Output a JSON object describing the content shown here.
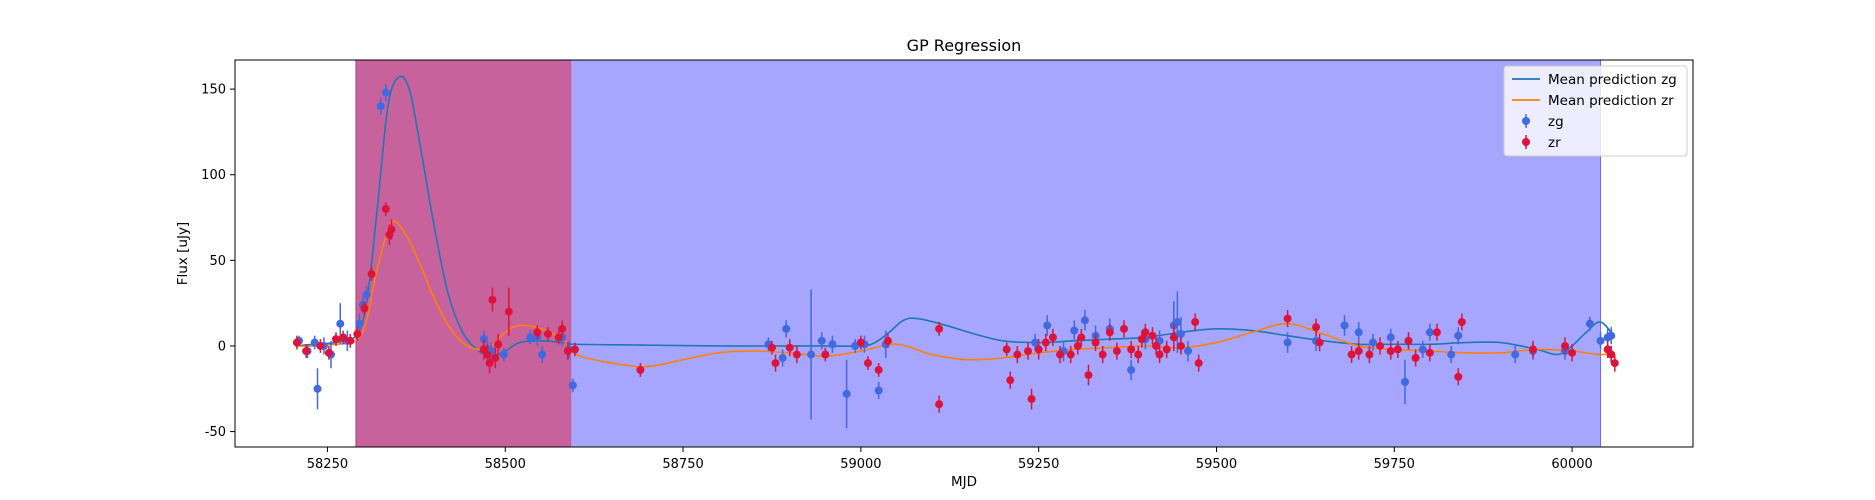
{
  "chart_data": {
    "type": "scatter",
    "title": "GP Regression",
    "xlabel": "MJD",
    "ylabel": "Flux [uJy]",
    "xlim": [
      58120,
      60170
    ],
    "ylim": [
      -59,
      167
    ],
    "xticks": [
      58250,
      58500,
      58750,
      59000,
      59250,
      59500,
      59750,
      60000
    ],
    "yticks": [
      -50,
      0,
      50,
      100,
      150
    ],
    "legend": {
      "position": "top-right",
      "entries": [
        {
          "label": "Mean prediction zg",
          "kind": "line",
          "color": "#1f77b4"
        },
        {
          "label": "Mean prediction zr",
          "kind": "line",
          "color": "#ff7f0e"
        },
        {
          "label": "zg",
          "kind": "errorbar",
          "color": "#4169e1"
        },
        {
          "label": "zr",
          "kind": "errorbar",
          "color": "#dc143c"
        }
      ]
    },
    "shaded_regions": [
      {
        "x0": 58290,
        "x1": 60040,
        "color": "#0000ff",
        "alpha": 0.35
      },
      {
        "x0": 58290,
        "x1": 58592,
        "color": "#e0365a",
        "alpha": 0.6
      }
    ],
    "series": [
      {
        "name": "Mean prediction zg",
        "kind": "line",
        "color": "#1f77b4",
        "x": [
          58205,
          58230,
          58260,
          58290,
          58305,
          58320,
          58335,
          58350,
          58365,
          58380,
          58400,
          58420,
          58440,
          58460,
          58480,
          58500,
          58520,
          58550,
          58580,
          58600,
          58700,
          58800,
          58900,
          58950,
          59000,
          59020,
          59040,
          59060,
          59080,
          59120,
          59160,
          59200,
          59250,
          59300,
          59350,
          59400,
          59450,
          59500,
          59550,
          59600,
          59650,
          59700,
          59750,
          59800,
          59850,
          59900,
          59950,
          59980,
          60000,
          60020,
          60040,
          60060
        ],
        "y": [
          0,
          1,
          2,
          6,
          25,
          80,
          140,
          157,
          150,
          118,
          70,
          30,
          8,
          -2,
          -6,
          -3,
          2,
          3,
          2,
          1,
          0.5,
          0,
          0,
          0,
          0,
          2,
          8,
          15,
          16,
          12,
          7,
          3,
          2,
          3,
          4,
          5,
          8,
          10,
          9,
          6,
          3,
          1,
          1,
          1,
          2,
          2,
          -2,
          -5,
          0,
          8,
          14,
          5
        ]
      },
      {
        "name": "Mean prediction zr",
        "kind": "line",
        "color": "#ff7f0e",
        "x": [
          58205,
          58230,
          58260,
          58290,
          58305,
          58320,
          58340,
          58360,
          58380,
          58400,
          58420,
          58440,
          58460,
          58480,
          58500,
          58520,
          58550,
          58580,
          58600,
          58650,
          58700,
          58750,
          58800,
          58850,
          58900,
          58950,
          59000,
          59050,
          59100,
          59150,
          59200,
          59250,
          59300,
          59350,
          59400,
          59450,
          59500,
          59550,
          59600,
          59650,
          59700,
          59750,
          59800,
          59850,
          59900,
          59950,
          60000,
          60040,
          60060
        ],
        "y": [
          0,
          0,
          1,
          3,
          15,
          45,
          72,
          65,
          48,
          28,
          12,
          2,
          -2,
          0,
          8,
          12,
          10,
          4,
          -5,
          -10,
          -12,
          -8,
          -4,
          -3,
          -4,
          -6,
          -3,
          1,
          -5,
          -8,
          -7,
          -4,
          -2,
          -1,
          0,
          -1,
          2,
          8,
          13,
          7,
          0,
          -2,
          -3,
          -4,
          -4,
          -2,
          -3,
          -5,
          -4
        ]
      },
      {
        "name": "zg",
        "kind": "errorbar",
        "color": "#4169e1",
        "x": [
          58210,
          58222,
          58232,
          58236,
          58245,
          58255,
          58268,
          58278,
          58295,
          58300,
          58305,
          58325,
          58332,
          58470,
          58475,
          58480,
          58498,
          58535,
          58545,
          58552,
          58580,
          58590,
          58595,
          58870,
          58890,
          58895,
          58930,
          58945,
          58960,
          58980,
          58992,
          59005,
          59025,
          59035,
          59245,
          59262,
          59285,
          59300,
          59315,
          59330,
          59350,
          59380,
          59400,
          59420,
          59440,
          59445,
          59450,
          59460,
          59600,
          59640,
          59680,
          59700,
          59720,
          59745,
          59765,
          59770,
          59790,
          59800,
          59830,
          59840,
          59920,
          59945,
          59990,
          60025,
          60040,
          60050,
          60055
        ],
        "y": [
          3,
          -3,
          2,
          -25,
          0,
          -5,
          13,
          3,
          13,
          24,
          30,
          140,
          148,
          4,
          -2,
          -3,
          -5,
          5,
          5,
          -5,
          5,
          -2,
          -23,
          1,
          -7,
          10,
          -5,
          3,
          1,
          -28,
          0,
          1,
          -26,
          1,
          2,
          12,
          -3,
          9,
          15,
          6,
          10,
          -14,
          4,
          3,
          12,
          14,
          7,
          -3,
          2,
          3,
          12,
          8,
          2,
          5,
          -21,
          3,
          -2,
          8,
          -5,
          6,
          -5,
          -3,
          -3,
          13,
          3,
          5,
          6
        ],
        "err": [
          3,
          4,
          4,
          12,
          5,
          8,
          12,
          6,
          6,
          5,
          5,
          5,
          5,
          5,
          5,
          5,
          4,
          4,
          5,
          5,
          5,
          5,
          4,
          4,
          5,
          5,
          38,
          5,
          5,
          20,
          4,
          5,
          5,
          8,
          5,
          6,
          6,
          6,
          6,
          6,
          6,
          6,
          6,
          6,
          14,
          18,
          10,
          6,
          6,
          6,
          6,
          6,
          5,
          5,
          13,
          5,
          5,
          5,
          5,
          5,
          5,
          5,
          5,
          4,
          5,
          5,
          5
        ]
      },
      {
        "name": "zr",
        "kind": "errorbar",
        "color": "#dc143c",
        "x": [
          58207,
          58220,
          58240,
          58252,
          58262,
          58272,
          58282,
          58292,
          58302,
          58312,
          58332,
          58337,
          58340,
          58470,
          58475,
          58478,
          58482,
          58486,
          58490,
          58505,
          58545,
          58560,
          58575,
          58580,
          58588,
          58598,
          58690,
          58875,
          58880,
          58900,
          58910,
          58950,
          59000,
          59010,
          59025,
          59038,
          59110,
          59110,
          59205,
          59210,
          59220,
          59235,
          59240,
          59250,
          59260,
          59270,
          59280,
          59295,
          59305,
          59310,
          59320,
          59330,
          59340,
          59350,
          59360,
          59370,
          59380,
          59390,
          59395,
          59400,
          59410,
          59415,
          59420,
          59430,
          59440,
          59450,
          59470,
          59475,
          59600,
          59640,
          59645,
          59690,
          59700,
          59715,
          59730,
          59745,
          59755,
          59770,
          59780,
          59800,
          59810,
          59840,
          59845,
          59945,
          59990,
          60000,
          60050,
          60055,
          60060
        ],
        "y": [
          2,
          -3,
          0,
          -4,
          4,
          5,
          3,
          7,
          22,
          42,
          80,
          65,
          68,
          -2,
          -5,
          -10,
          27,
          -7,
          1,
          20,
          8,
          7,
          5,
          10,
          -3,
          -2,
          -14,
          -1,
          -10,
          -1,
          -5,
          -5,
          2,
          -10,
          -14,
          3,
          10,
          -34,
          -2,
          -20,
          -5,
          -3,
          -31,
          -2,
          2,
          5,
          -5,
          -5,
          0,
          5,
          -17,
          2,
          -5,
          8,
          -3,
          10,
          -2,
          -5,
          4,
          8,
          6,
          0,
          -5,
          -2,
          5,
          0,
          14,
          -10,
          16,
          11,
          2,
          -5,
          -3,
          -5,
          0,
          -3,
          -2,
          3,
          -7,
          -4,
          8,
          -18,
          14,
          -2,
          0,
          -4,
          -2,
          -5,
          -10
        ],
        "err": [
          4,
          4,
          4,
          4,
          4,
          4,
          4,
          4,
          4,
          4,
          4,
          6,
          6,
          6,
          6,
          6,
          7,
          6,
          6,
          14,
          4,
          4,
          4,
          5,
          5,
          4,
          4,
          4,
          5,
          5,
          5,
          4,
          4,
          4,
          4,
          4,
          4,
          5,
          4,
          5,
          5,
          5,
          6,
          6,
          5,
          5,
          5,
          5,
          5,
          5,
          6,
          5,
          5,
          5,
          5,
          5,
          5,
          5,
          5,
          5,
          5,
          5,
          5,
          5,
          8,
          5,
          5,
          5,
          5,
          5,
          5,
          5,
          5,
          5,
          5,
          5,
          5,
          5,
          5,
          5,
          5,
          5,
          5,
          5,
          5,
          5,
          5,
          5,
          5
        ]
      }
    ]
  }
}
